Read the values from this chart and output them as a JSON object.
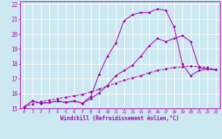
{
  "xlabel": "Windchill (Refroidissement éolien,°C)",
  "background_color": "#cce8f0",
  "grid_color": "#ffffff",
  "line_color": "#aa00aa",
  "xlim": [
    -0.5,
    23.5
  ],
  "ylim": [
    15,
    22.2
  ],
  "xticks": [
    0,
    1,
    2,
    3,
    4,
    5,
    6,
    7,
    8,
    9,
    10,
    11,
    12,
    13,
    14,
    15,
    16,
    17,
    18,
    19,
    20,
    21,
    22,
    23
  ],
  "yticks": [
    15,
    16,
    17,
    18,
    19,
    20,
    21,
    22
  ],
  "line2_x": [
    0,
    1,
    2,
    3,
    4,
    5,
    6,
    7,
    8,
    9,
    10,
    11,
    12,
    13,
    14,
    15,
    16,
    17,
    18,
    19,
    20,
    21,
    22,
    23
  ],
  "line2_y": [
    15.1,
    15.5,
    15.35,
    15.4,
    15.5,
    15.4,
    15.5,
    15.35,
    15.8,
    17.3,
    18.5,
    19.4,
    20.9,
    21.3,
    21.45,
    21.45,
    21.7,
    21.6,
    20.5,
    18.0,
    17.2,
    17.55,
    17.65,
    17.6
  ],
  "line1_x": [
    0,
    1,
    2,
    3,
    4,
    5,
    6,
    7,
    8,
    9,
    10,
    11,
    12,
    13,
    14,
    15,
    16,
    17,
    18,
    19,
    20,
    21,
    22,
    23
  ],
  "line1_y": [
    15.1,
    15.5,
    15.35,
    15.4,
    15.5,
    15.4,
    15.5,
    15.35,
    15.65,
    16.05,
    16.55,
    17.2,
    17.55,
    17.9,
    18.5,
    19.2,
    19.7,
    19.5,
    19.7,
    19.9,
    19.5,
    17.75,
    17.65,
    17.6
  ],
  "line3_x": [
    0,
    1,
    2,
    3,
    4,
    5,
    6,
    7,
    8,
    9,
    10,
    11,
    12,
    13,
    14,
    15,
    16,
    17,
    18,
    19,
    20,
    21,
    22,
    23
  ],
  "line3_y": [
    15.1,
    15.3,
    15.45,
    15.55,
    15.65,
    15.75,
    15.85,
    15.95,
    16.1,
    16.3,
    16.5,
    16.7,
    16.9,
    17.05,
    17.2,
    17.4,
    17.55,
    17.65,
    17.75,
    17.8,
    17.85,
    17.8,
    17.75,
    17.6
  ],
  "marker": "D",
  "markersize": 2.2,
  "linewidth": 0.8
}
